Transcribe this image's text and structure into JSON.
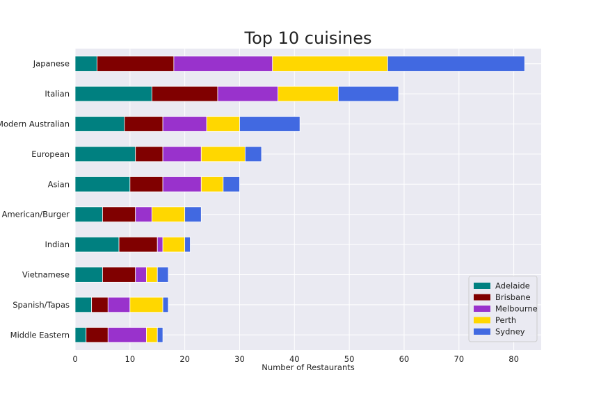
{
  "chart_data": {
    "type": "bar",
    "orientation": "horizontal",
    "stacked": true,
    "title": "Top 10 cuisines",
    "xlabel": "Number of Restaurants",
    "ylabel": "",
    "xlim": [
      0,
      85
    ],
    "x_ticks": [
      0,
      10,
      20,
      30,
      40,
      50,
      60,
      70,
      80
    ],
    "grid": true,
    "legend_position": "lower-right",
    "categories": [
      "Japanese",
      "Italian",
      "Modern Australian",
      "European",
      "Asian",
      "American/Burger",
      "Indian",
      "Vietnamese",
      "Spanish/Tapas",
      "Middle Eastern"
    ],
    "series": [
      {
        "name": "Adelaide",
        "color": "#008080",
        "values": [
          4,
          14,
          9,
          11,
          10,
          5,
          8,
          5,
          3,
          2
        ]
      },
      {
        "name": "Brisbane",
        "color": "#800000",
        "values": [
          14,
          12,
          7,
          5,
          6,
          6,
          7,
          6,
          3,
          4
        ]
      },
      {
        "name": "Melbourne",
        "color": "#9932CC",
        "values": [
          18,
          11,
          8,
          7,
          7,
          3,
          1,
          2,
          4,
          7
        ]
      },
      {
        "name": "Perth",
        "color": "#FFD700",
        "values": [
          21,
          11,
          6,
          8,
          4,
          6,
          4,
          2,
          6,
          2
        ]
      },
      {
        "name": "Sydney",
        "color": "#4169E1",
        "values": [
          25,
          11,
          11,
          3,
          3,
          3,
          1,
          2,
          1,
          1
        ]
      }
    ]
  }
}
